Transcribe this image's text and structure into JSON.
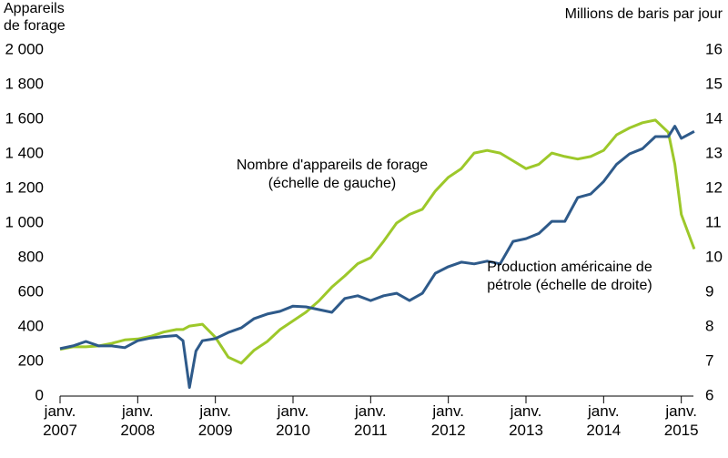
{
  "chart_data": {
    "type": "line",
    "y_label": "Appareils de forage",
    "y2_label": "Millions de baris par jour",
    "annotations": [
      [
        "Nombre d'appareils de forage",
        "(échelle de gauche)"
      ],
      [
        "Production américaine de",
        "pétrole (échelle de droite)"
      ]
    ],
    "x": [
      "2007-01",
      "2007-03",
      "2007-05",
      "2007-07",
      "2007-09",
      "2007-11",
      "2008-01",
      "2008-03",
      "2008-05",
      "2008-07",
      "2008-08",
      "2008-09",
      "2008-10",
      "2008-11",
      "2009-01",
      "2009-03",
      "2009-05",
      "2009-07",
      "2009-09",
      "2009-11",
      "2010-01",
      "2010-03",
      "2010-05",
      "2010-07",
      "2010-09",
      "2010-11",
      "2011-01",
      "2011-03",
      "2011-05",
      "2011-07",
      "2011-09",
      "2011-11",
      "2012-01",
      "2012-03",
      "2012-05",
      "2012-07",
      "2012-09",
      "2012-11",
      "2013-01",
      "2013-03",
      "2013-05",
      "2013-07",
      "2013-09",
      "2013-11",
      "2014-01",
      "2014-03",
      "2014-05",
      "2014-07",
      "2014-09",
      "2014-11",
      "2014-12",
      "2015-01",
      "2015-03"
    ],
    "xlim": [
      "2007-01",
      "2015-04"
    ],
    "xticks": [
      {
        "value": "2007-01",
        "label": "janv. 2007"
      },
      {
        "value": "2008-01",
        "label": "janv. 2008"
      },
      {
        "value": "2009-01",
        "label": "janv. 2009"
      },
      {
        "value": "2010-01",
        "label": "janv. 2010"
      },
      {
        "value": "2011-01",
        "label": "janv. 2011"
      },
      {
        "value": "2012-01",
        "label": "janv. 2012"
      },
      {
        "value": "2013-01",
        "label": "janv. 2013"
      },
      {
        "value": "2014-01",
        "label": "janv. 2014"
      },
      {
        "value": "2015-01",
        "label": "janv. 2015"
      }
    ],
    "ylim": [
      0,
      2000
    ],
    "yticks": [
      0,
      200,
      400,
      600,
      800,
      {
        "value": 1000,
        "label": "1 000"
      },
      {
        "value": 1200,
        "label": "1 200"
      },
      {
        "value": 1400,
        "label": "1 400"
      },
      {
        "value": 1600,
        "label": "1 600"
      },
      {
        "value": 1800,
        "label": "1 800"
      },
      {
        "value": 2000,
        "label": "2 000"
      }
    ],
    "y2lim": [
      6,
      16
    ],
    "y2ticks": [
      6,
      7,
      8,
      9,
      10,
      11,
      12,
      13,
      14,
      15,
      16
    ],
    "series": [
      {
        "color": "#9dc82a",
        "values": [
          270,
          285,
          285,
          290,
          305,
          325,
          330,
          345,
          370,
          385,
          385,
          405,
          410,
          415,
          340,
          225,
          190,
          265,
          315,
          385,
          435,
          485,
          550,
          630,
          695,
          765,
          800,
          895,
          1000,
          1050,
          1080,
          1185,
          1265,
          1315,
          1405,
          1420,
          1405,
          1360,
          1315,
          1340,
          1405,
          1385,
          1370,
          1385,
          1420,
          1510,
          1550,
          1580,
          1595,
          1525,
          1340,
          1050,
          850
        ]
      },
      {
        "color": "#2e5a8a",
        "axis": "y2",
        "values": [
          7.37,
          7.45,
          7.58,
          7.45,
          7.45,
          7.4,
          7.6,
          7.68,
          7.72,
          7.75,
          7.6,
          6.25,
          7.3,
          7.6,
          7.66,
          7.84,
          7.97,
          8.24,
          8.37,
          8.45,
          8.6,
          8.58,
          8.5,
          8.42,
          8.82,
          8.9,
          8.76,
          8.9,
          8.97,
          8.76,
          8.97,
          9.55,
          9.74,
          9.87,
          9.82,
          9.9,
          9.82,
          10.47,
          10.55,
          10.7,
          11.05,
          11.05,
          11.74,
          11.84,
          12.2,
          12.7,
          13.0,
          13.15,
          13.5,
          13.5,
          13.8,
          13.45,
          13.65
        ]
      }
    ]
  }
}
